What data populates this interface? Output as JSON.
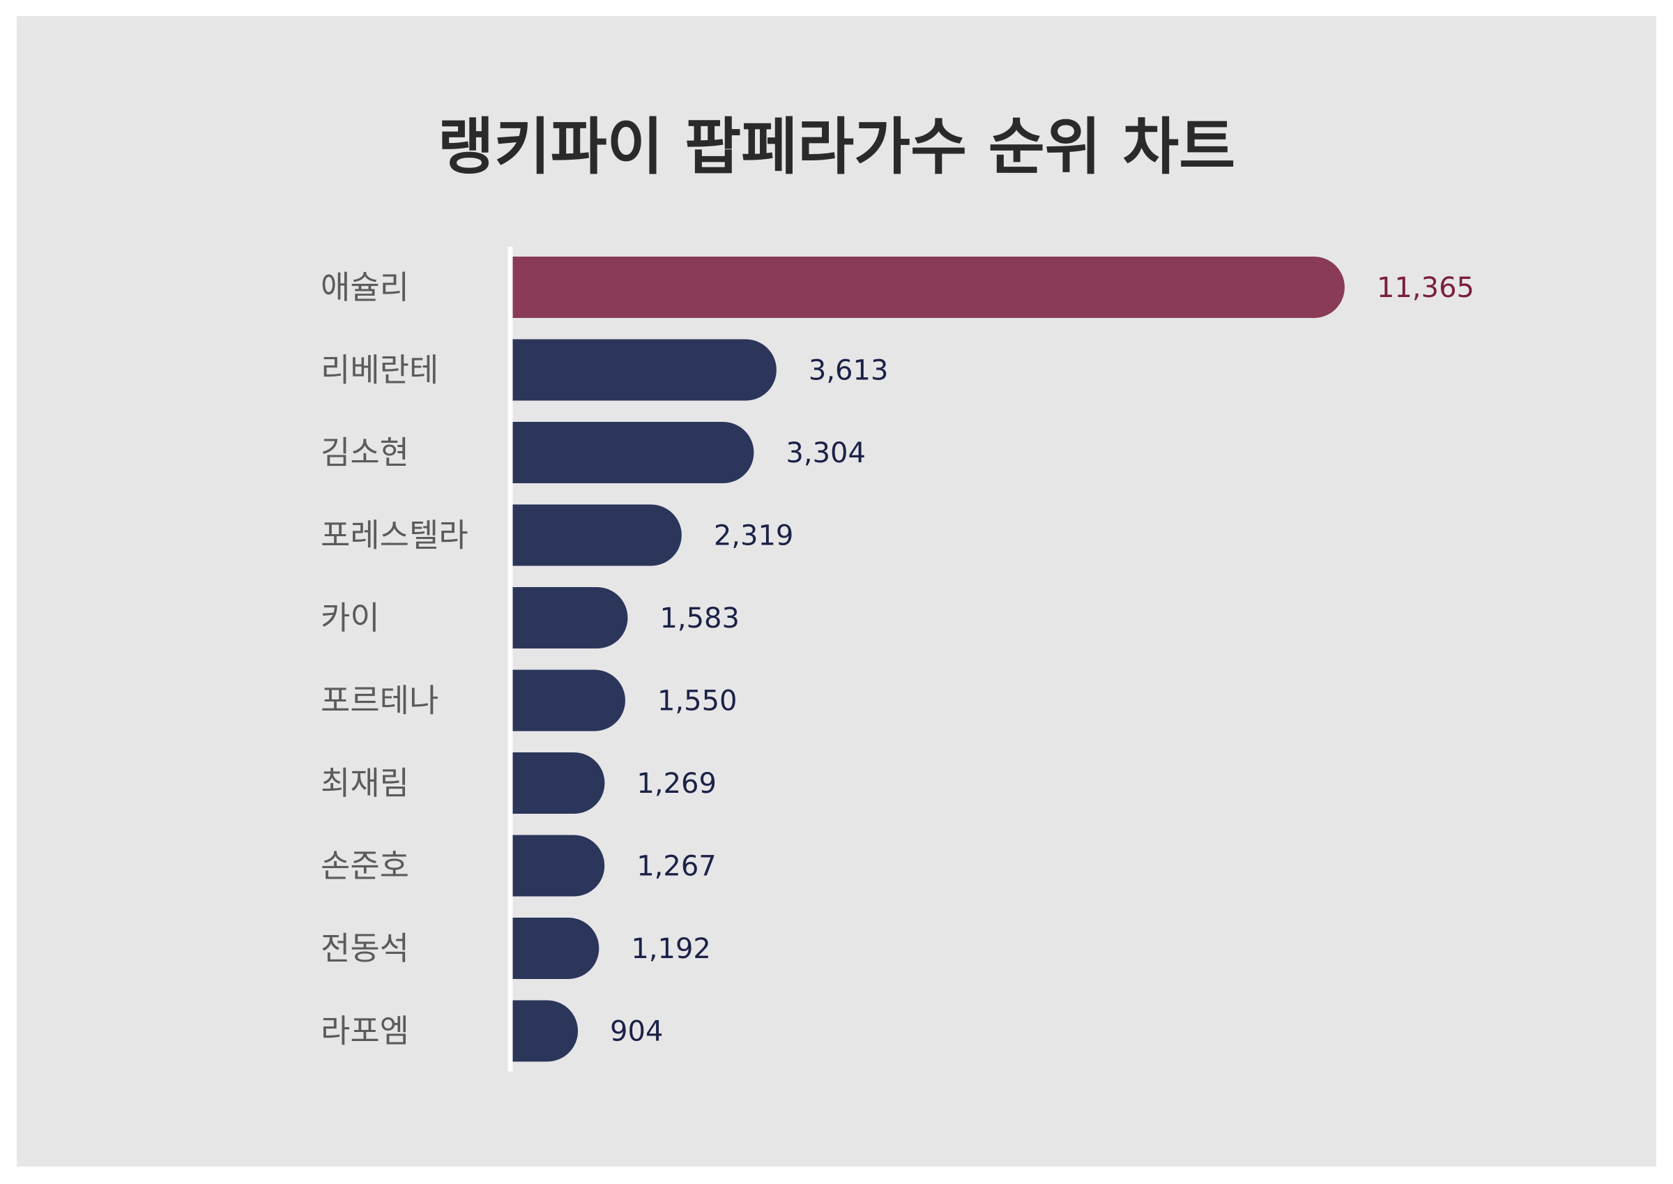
{
  "colors": {
    "background": "#e7e6e7",
    "highlight_bar": "#8a3b57",
    "highlight_label": "#7a1f3d",
    "bar": "#2c365b",
    "value_label": "#1b2247",
    "category_label": "#5b5b5b",
    "axis_line": "#ffffff"
  },
  "chart_data": {
    "type": "bar",
    "orientation": "horizontal",
    "title": "랭키파이 팝페라가수 순위 차트",
    "categories": [
      "애슐리",
      "리베란테",
      "김소현",
      "포레스텔라",
      "카이",
      "포르테나",
      "최재림",
      "손준호",
      "전동석",
      "라포엠"
    ],
    "values": [
      11365,
      3613,
      3304,
      2319,
      1583,
      1550,
      1269,
      1267,
      1192,
      904
    ],
    "value_labels": [
      "11,365",
      "3,613",
      "3,304",
      "2,319",
      "1,583",
      "1,550",
      "1,269",
      "1,267",
      "1,192",
      "904"
    ],
    "highlight_index": 0,
    "xlim": [
      0,
      11365
    ],
    "grid": false,
    "legend": "none"
  }
}
